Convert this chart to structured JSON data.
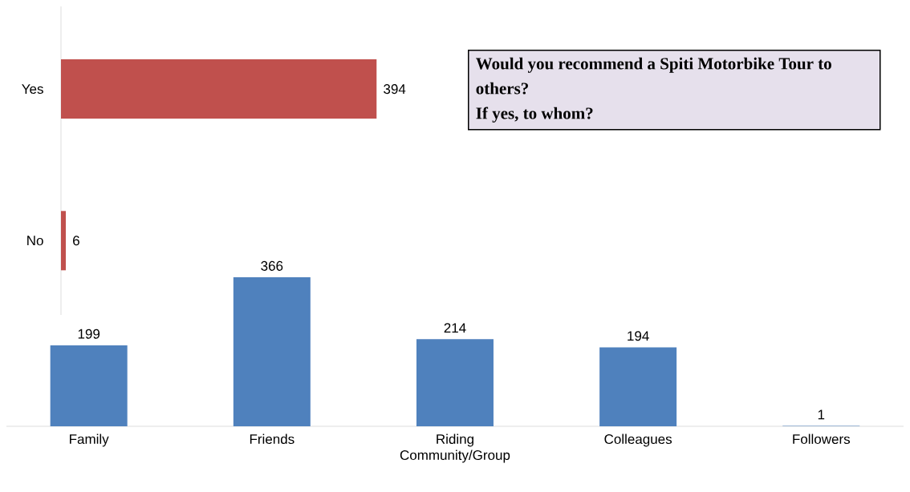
{
  "chart_data": [
    {
      "type": "bar",
      "orientation": "horizontal",
      "categories": [
        "Yes",
        "No"
      ],
      "values": [
        394,
        6
      ],
      "color": "#c0504d",
      "data_labels": true,
      "tick_labels": "y"
    },
    {
      "type": "bar",
      "categories": [
        "Family",
        "Friends",
        "Riding Community/Group",
        "Colleagues",
        "Followers"
      ],
      "values": [
        199,
        366,
        214,
        194,
        1
      ],
      "color": "#4f81bd",
      "data_labels": true,
      "tick_labels": "x"
    },
    {
      "type": "other",
      "title": "Would you recommend a Spiti Motorbike Tour to others?",
      "subtitle": "If yes, to whom?"
    }
  ]
}
